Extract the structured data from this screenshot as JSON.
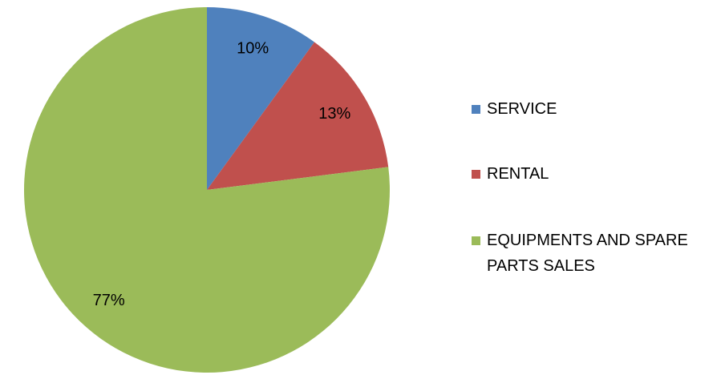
{
  "chart_data": {
    "type": "pie",
    "categories": [
      "SERVICE",
      "RENTAL",
      "EQUIPMENTS AND SPARE PARTS SALES"
    ],
    "values": [
      10,
      13,
      77
    ],
    "value_labels": [
      "10%",
      "13%",
      "77%"
    ],
    "colors": [
      "#4f81bd",
      "#c0504d",
      "#9bbb59"
    ],
    "legend": "right"
  }
}
